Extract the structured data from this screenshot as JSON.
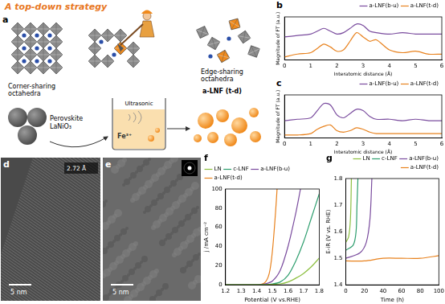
{
  "diagram": {
    "panel": "a",
    "title": "A top-down strategy",
    "left_top": [
      "Corner-sharing",
      "octahedra"
    ],
    "left_bottom": [
      "Perovskite",
      "LaNiO₃"
    ],
    "process": "Ultrasonic",
    "ion": "Fe³⁺",
    "right_top": [
      "Edge-sharing",
      "octahedra"
    ],
    "right_label": "a-LNF (t-d)"
  },
  "images": [
    {
      "panel": "d",
      "spacing": "2.72 Å",
      "scale_bar": "5 nm"
    },
    {
      "panel": "e",
      "scale_bar": "5 nm"
    }
  ],
  "chart_data": [
    {
      "type": "line",
      "title": "b",
      "x_label": "Interatomic distance (Å)",
      "y_label": "Magnitude of FT (a.u.)",
      "x": [
        0,
        0.5,
        1,
        1.25,
        1.5,
        1.75,
        2,
        2.25,
        2.5,
        2.75,
        3,
        3.25,
        3.5,
        4,
        4.5,
        5,
        5.5,
        6
      ],
      "series": [
        {
          "name": "a-LNF(b-u)",
          "color": "#7a4c9e",
          "values": [
            1.6,
            1.7,
            1.8,
            2.0,
            2.2,
            2.0,
            1.8,
            1.9,
            2.2,
            2.5,
            2.4,
            2.0,
            1.9,
            1.8,
            1.9,
            1.8,
            1.8,
            1.8
          ]
        },
        {
          "name": "a-LNF(t-d)",
          "color": "#e8821e",
          "values": [
            0.2,
            0.4,
            0.5,
            0.8,
            1.1,
            0.9,
            0.6,
            0.7,
            1.3,
            1.9,
            1.6,
            1.3,
            1.4,
            0.7,
            0.5,
            0.6,
            0.4,
            0.4
          ]
        }
      ],
      "xlim": [
        0,
        6
      ],
      "xticks": [
        0,
        1,
        2,
        3,
        4,
        5,
        6
      ],
      "ylim": [
        0,
        3
      ],
      "tick_labels": "x",
      "grid": false,
      "legend": "upper right"
    },
    {
      "type": "line",
      "title": "c",
      "x_label": "Interatomic distance (Å)",
      "y_label": "Magnitude of FT (a.u.)",
      "x": [
        0,
        0.5,
        1,
        1.25,
        1.5,
        1.75,
        2,
        2.25,
        2.5,
        2.75,
        3,
        3.25,
        3.5,
        4,
        4.5,
        5,
        5.5,
        6
      ],
      "series": [
        {
          "name": "a-LNF(b-u)",
          "color": "#7a4c9e",
          "values": [
            1.2,
            1.3,
            1.4,
            1.9,
            2.4,
            2.3,
            1.6,
            1.4,
            1.7,
            2.0,
            1.9,
            1.5,
            1.3,
            1.3,
            1.2,
            1.3,
            1.2,
            1.2
          ]
        },
        {
          "name": "a-LNF(t-d)",
          "color": "#e8821e",
          "values": [
            0.2,
            0.2,
            0.3,
            0.6,
            0.8,
            0.9,
            0.5,
            0.4,
            0.5,
            0.7,
            0.6,
            0.4,
            0.3,
            0.3,
            0.3,
            0.3,
            0.3,
            0.3
          ]
        }
      ],
      "xlim": [
        0,
        6
      ],
      "xticks": [
        0,
        1,
        2,
        3,
        4,
        5,
        6
      ],
      "ylim": [
        0,
        3
      ],
      "tick_labels": "x",
      "grid": false,
      "legend": "upper right"
    },
    {
      "type": "line",
      "title": "f",
      "x_label": "Potential (V vs.RHE)",
      "y_label": "j /mA cm⁻²",
      "series": [
        {
          "name": "LN",
          "color": "#8cbf3f",
          "x": [
            1.2,
            1.4,
            1.5,
            1.55,
            1.6,
            1.65,
            1.7,
            1.75,
            1.8
          ],
          "values": [
            0,
            0,
            0.5,
            1,
            3,
            7,
            12,
            19,
            28
          ]
        },
        {
          "name": "c-LNF",
          "color": "#2e9e6e",
          "x": [
            1.2,
            1.4,
            1.5,
            1.55,
            1.6,
            1.65,
            1.7,
            1.75,
            1.8
          ],
          "values": [
            0,
            0,
            1,
            3,
            10,
            25,
            45,
            70,
            95
          ]
        },
        {
          "name": "a-LNF(b-u)",
          "color": "#7a4c9e",
          "x": [
            1.2,
            1.4,
            1.45,
            1.5,
            1.55,
            1.6,
            1.65,
            1.68
          ],
          "values": [
            0,
            0,
            1,
            4,
            15,
            40,
            75,
            100
          ]
        },
        {
          "name": "a-LNF(t-d)",
          "color": "#e8821e",
          "x": [
            1.2,
            1.4,
            1.45,
            1.48,
            1.5,
            1.52,
            1.53
          ],
          "values": [
            0,
            0,
            2,
            12,
            35,
            75,
            100
          ]
        }
      ],
      "xlim": [
        1.2,
        1.8
      ],
      "xticks": [
        1.2,
        1.3,
        1.4,
        1.5,
        1.6,
        1.7,
        1.8
      ],
      "ylim": [
        0,
        100
      ],
      "yticks": [
        0,
        20,
        40,
        60,
        80,
        100
      ],
      "grid": false,
      "legend": "upper left"
    },
    {
      "type": "line",
      "title": "g",
      "x_label": "Time (h)",
      "y_label": "E-iR (V vs. RHE)",
      "series": [
        {
          "name": "LN",
          "color": "#8cbf3f",
          "x": [
            0,
            3,
            5,
            6
          ],
          "values": [
            1.56,
            1.58,
            1.65,
            1.8
          ]
        },
        {
          "name": "c-LNF",
          "color": "#2e9e6e",
          "x": [
            0,
            8,
            11,
            12,
            13
          ],
          "values": [
            1.53,
            1.55,
            1.6,
            1.7,
            1.8
          ]
        },
        {
          "name": "a-LNF(b-u)",
          "color": "#7a4c9e",
          "x": [
            0,
            15,
            22,
            26,
            28
          ],
          "values": [
            1.5,
            1.52,
            1.56,
            1.65,
            1.8
          ]
        },
        {
          "name": "a-LNF(t-d)",
          "color": "#e8821e",
          "x": [
            0,
            20,
            40,
            60,
            80,
            100
          ],
          "values": [
            1.49,
            1.49,
            1.5,
            1.5,
            1.5,
            1.51
          ]
        }
      ],
      "xlim": [
        0,
        100
      ],
      "xticks": [
        0,
        20,
        40,
        60,
        80,
        100
      ],
      "ylim": [
        1.4,
        1.8
      ],
      "yticks": [
        1.4,
        1.5,
        1.6,
        1.7,
        1.8
      ],
      "grid": false,
      "legend": "upper right"
    }
  ]
}
